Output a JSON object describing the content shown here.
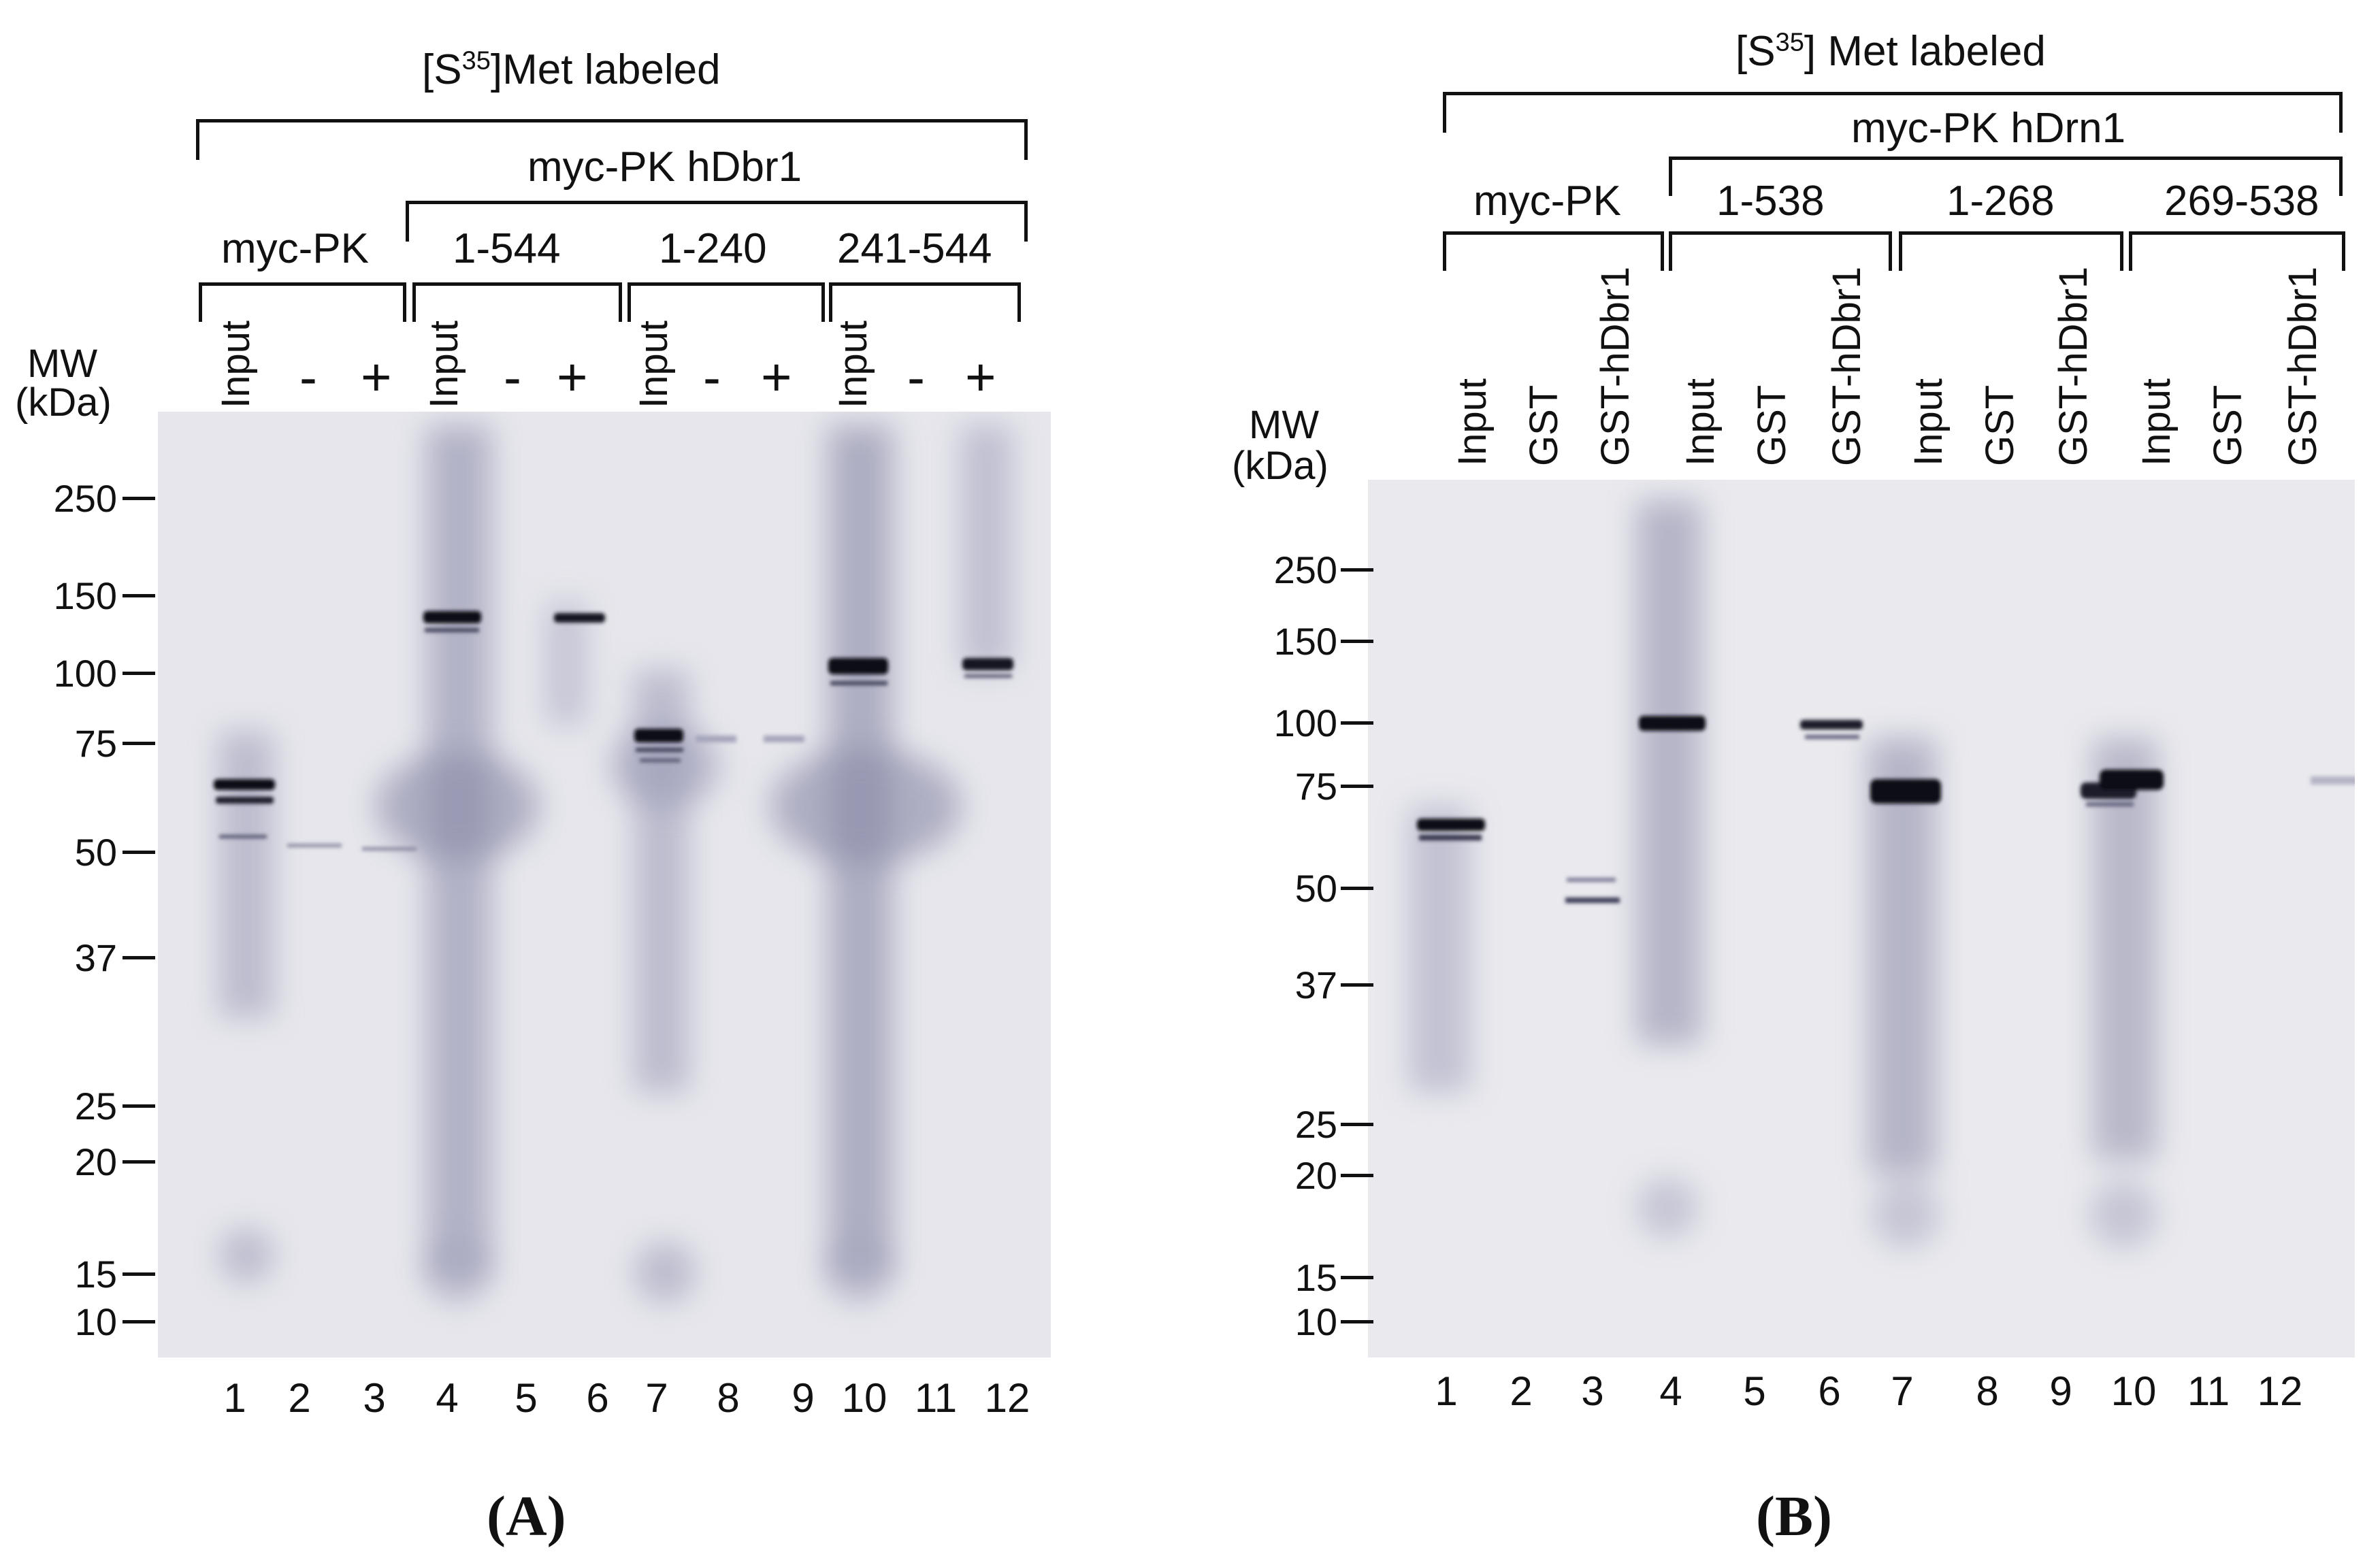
{
  "panel_a": {
    "header": "[S",
    "header_sup": "35",
    "header_rest": "]Met labeled",
    "group_label": "myc-PK  hDbr1",
    "constructs": [
      "myc-PK",
      "1-544",
      "1-240",
      "241-544"
    ],
    "lane_labels": [
      "Input",
      "-",
      "+",
      "Input",
      "-",
      "+",
      "Input",
      "-",
      "+",
      "Input",
      "-",
      "+"
    ],
    "mw_title": "MW",
    "mw_unit": "(kDa)",
    "mw_ticks": [
      "250",
      "150",
      "100",
      "75",
      "50",
      "37",
      "25",
      "20",
      "15",
      "10"
    ],
    "lane_numbers": [
      "1",
      "2",
      "3",
      "4",
      "5",
      "6",
      "7",
      "8",
      "9",
      "10",
      "11",
      "12"
    ],
    "caption": "(A)"
  },
  "panel_b": {
    "header": "[S",
    "header_sup": "35",
    "header_rest": "] Met labeled",
    "group_label": "myc-PK  hDrn1",
    "constructs": [
      "myc-PK",
      "1-538",
      "1-268",
      "269-538"
    ],
    "lane_labels": [
      "Input",
      "GST",
      "GST-hDbr1",
      "Input",
      "GST",
      "GST-hDbr1",
      "Input",
      "GST",
      "GST-hDbr1",
      "Input",
      "GST",
      "GST-hDbr1"
    ],
    "mw_title": "MW",
    "mw_unit": "(kDa)",
    "mw_ticks": [
      "250",
      "150",
      "100",
      "75",
      "50",
      "37",
      "25",
      "20",
      "15",
      "10"
    ],
    "lane_numbers": [
      "1",
      "2",
      "3",
      "4",
      "5",
      "6",
      "7",
      "8",
      "9",
      "10",
      "11",
      "12"
    ],
    "caption": "(B)"
  },
  "colors": {
    "gel_background": "#e6e6ec",
    "band": "#0d0d18",
    "smear": "#5a5a78"
  }
}
